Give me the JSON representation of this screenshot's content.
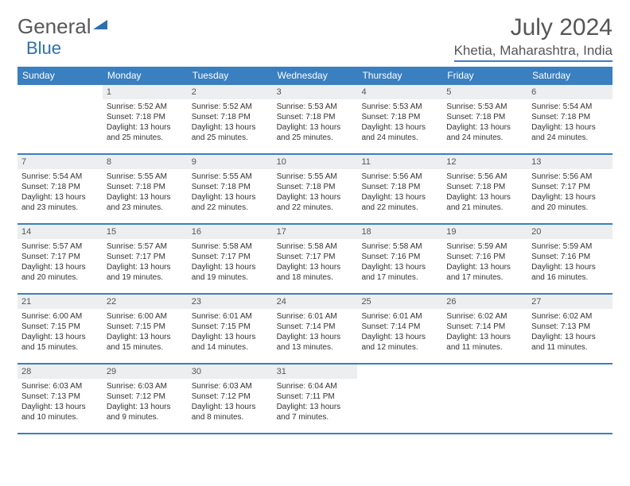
{
  "logo": {
    "text1": "General",
    "text2": "Blue",
    "accent_color": "#2e6fad"
  },
  "title": "July 2024",
  "location": "Khetia, Maharashtra, India",
  "weekdays": [
    "Sunday",
    "Monday",
    "Tuesday",
    "Wednesday",
    "Thursday",
    "Friday",
    "Saturday"
  ],
  "colors": {
    "header_bar": "#3a7fbf",
    "daynum_bg": "#eceef0",
    "text_main": "#333333",
    "text_muted": "#555555",
    "white": "#ffffff"
  },
  "typography": {
    "title_fontsize": 30,
    "location_fontsize": 17,
    "weekday_fontsize": 12,
    "body_fontsize": 10
  },
  "start_offset": 1,
  "days": [
    {
      "n": "1",
      "sr": "5:52 AM",
      "ss": "7:18 PM",
      "dl": "13 hours and 25 minutes."
    },
    {
      "n": "2",
      "sr": "5:52 AM",
      "ss": "7:18 PM",
      "dl": "13 hours and 25 minutes."
    },
    {
      "n": "3",
      "sr": "5:53 AM",
      "ss": "7:18 PM",
      "dl": "13 hours and 25 minutes."
    },
    {
      "n": "4",
      "sr": "5:53 AM",
      "ss": "7:18 PM",
      "dl": "13 hours and 24 minutes."
    },
    {
      "n": "5",
      "sr": "5:53 AM",
      "ss": "7:18 PM",
      "dl": "13 hours and 24 minutes."
    },
    {
      "n": "6",
      "sr": "5:54 AM",
      "ss": "7:18 PM",
      "dl": "13 hours and 24 minutes."
    },
    {
      "n": "7",
      "sr": "5:54 AM",
      "ss": "7:18 PM",
      "dl": "13 hours and 23 minutes."
    },
    {
      "n": "8",
      "sr": "5:55 AM",
      "ss": "7:18 PM",
      "dl": "13 hours and 23 minutes."
    },
    {
      "n": "9",
      "sr": "5:55 AM",
      "ss": "7:18 PM",
      "dl": "13 hours and 22 minutes."
    },
    {
      "n": "10",
      "sr": "5:55 AM",
      "ss": "7:18 PM",
      "dl": "13 hours and 22 minutes."
    },
    {
      "n": "11",
      "sr": "5:56 AM",
      "ss": "7:18 PM",
      "dl": "13 hours and 22 minutes."
    },
    {
      "n": "12",
      "sr": "5:56 AM",
      "ss": "7:18 PM",
      "dl": "13 hours and 21 minutes."
    },
    {
      "n": "13",
      "sr": "5:56 AM",
      "ss": "7:17 PM",
      "dl": "13 hours and 20 minutes."
    },
    {
      "n": "14",
      "sr": "5:57 AM",
      "ss": "7:17 PM",
      "dl": "13 hours and 20 minutes."
    },
    {
      "n": "15",
      "sr": "5:57 AM",
      "ss": "7:17 PM",
      "dl": "13 hours and 19 minutes."
    },
    {
      "n": "16",
      "sr": "5:58 AM",
      "ss": "7:17 PM",
      "dl": "13 hours and 19 minutes."
    },
    {
      "n": "17",
      "sr": "5:58 AM",
      "ss": "7:17 PM",
      "dl": "13 hours and 18 minutes."
    },
    {
      "n": "18",
      "sr": "5:58 AM",
      "ss": "7:16 PM",
      "dl": "13 hours and 17 minutes."
    },
    {
      "n": "19",
      "sr": "5:59 AM",
      "ss": "7:16 PM",
      "dl": "13 hours and 17 minutes."
    },
    {
      "n": "20",
      "sr": "5:59 AM",
      "ss": "7:16 PM",
      "dl": "13 hours and 16 minutes."
    },
    {
      "n": "21",
      "sr": "6:00 AM",
      "ss": "7:15 PM",
      "dl": "13 hours and 15 minutes."
    },
    {
      "n": "22",
      "sr": "6:00 AM",
      "ss": "7:15 PM",
      "dl": "13 hours and 15 minutes."
    },
    {
      "n": "23",
      "sr": "6:01 AM",
      "ss": "7:15 PM",
      "dl": "13 hours and 14 minutes."
    },
    {
      "n": "24",
      "sr": "6:01 AM",
      "ss": "7:14 PM",
      "dl": "13 hours and 13 minutes."
    },
    {
      "n": "25",
      "sr": "6:01 AM",
      "ss": "7:14 PM",
      "dl": "13 hours and 12 minutes."
    },
    {
      "n": "26",
      "sr": "6:02 AM",
      "ss": "7:14 PM",
      "dl": "13 hours and 11 minutes."
    },
    {
      "n": "27",
      "sr": "6:02 AM",
      "ss": "7:13 PM",
      "dl": "13 hours and 11 minutes."
    },
    {
      "n": "28",
      "sr": "6:03 AM",
      "ss": "7:13 PM",
      "dl": "13 hours and 10 minutes."
    },
    {
      "n": "29",
      "sr": "6:03 AM",
      "ss": "7:12 PM",
      "dl": "13 hours and 9 minutes."
    },
    {
      "n": "30",
      "sr": "6:03 AM",
      "ss": "7:12 PM",
      "dl": "13 hours and 8 minutes."
    },
    {
      "n": "31",
      "sr": "6:04 AM",
      "ss": "7:11 PM",
      "dl": "13 hours and 7 minutes."
    }
  ],
  "labels": {
    "sunrise": "Sunrise:",
    "sunset": "Sunset:",
    "daylight": "Daylight:"
  }
}
